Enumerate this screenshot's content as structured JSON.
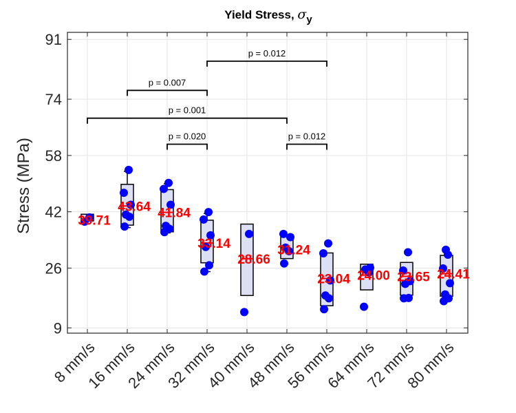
{
  "chart_data": {
    "type": "box",
    "title": "Yield Stress, ",
    "title_symbol": "σ",
    "title_subscript": "y",
    "ylabel": "Stress (MPa)",
    "ylim": [
      7.5,
      93
    ],
    "yticks": [
      9,
      26,
      42,
      58,
      74,
      91
    ],
    "grid": true,
    "colors": {
      "points": "#0000ff",
      "median": "#ff0000",
      "box_fill": "#dde0f5",
      "box_edge": "#000000",
      "labels": "#ff0000"
    },
    "categories": [
      "8 mm/s",
      "16 mm/s",
      "24 mm/s",
      "32 mm/s",
      "40 mm/s",
      "48 mm/s",
      "56 mm/s",
      "64 mm/s",
      "72 mm/s",
      "80 mm/s"
    ],
    "medians": [
      39.71,
      43.64,
      41.84,
      33.14,
      28.66,
      31.24,
      23.04,
      24.0,
      23.65,
      24.41
    ],
    "median_labels": [
      "39.71",
      "43.64",
      "41.84",
      "33.14",
      "28.66",
      "31.24",
      "23.04",
      "24.00",
      "23.65",
      "24.41"
    ],
    "boxes": [
      {
        "q1": 39.4,
        "q3": 41.3,
        "whisker_low": 39.4,
        "whisker_high": 41.3
      },
      {
        "q1": 38.2,
        "q3": 49.8,
        "whisker_low": 37.5,
        "whisker_high": 53.5
      },
      {
        "q1": 36.3,
        "q3": 48.3,
        "whisker_low": 36.0,
        "whisker_high": 50.0
      },
      {
        "q1": 27.5,
        "q3": 39.6,
        "whisker_low": 25.0,
        "whisker_high": 41.5
      },
      {
        "q1": 18.2,
        "q3": 38.5,
        "whisker_low": 18.2,
        "whisker_high": 38.5
      },
      {
        "q1": 28.7,
        "q3": 35.5,
        "whisker_low": 28.7,
        "whisker_high": 35.5
      },
      {
        "q1": 15.3,
        "q3": 30.3,
        "whisker_low": 15.3,
        "whisker_high": 30.3
      },
      {
        "q1": 19.8,
        "q3": 27.1,
        "whisker_low": 19.8,
        "whisker_high": 27.1
      },
      {
        "q1": 18.3,
        "q3": 27.6,
        "whisker_low": 18.3,
        "whisker_high": 27.6
      },
      {
        "q1": 18.0,
        "q3": 29.6,
        "whisker_low": 18.0,
        "whisker_high": 29.6
      }
    ],
    "points": [
      [
        39.2,
        40.4
      ],
      [
        37.8,
        40.6,
        41.2,
        44.0,
        47.4,
        53.9
      ],
      [
        36.2,
        37.2,
        38.0,
        44.0,
        48.5,
        50.2
      ],
      [
        25.0,
        26.8,
        32.0,
        35.3,
        39.8,
        41.9
      ],
      [
        13.5,
        35.7
      ],
      [
        27.3,
        30.8,
        31.8,
        34.8,
        35.7
      ],
      [
        14.3,
        17.4,
        18.2,
        22.5,
        30.2,
        33.0
      ],
      [
        15.0,
        24.8,
        25.6,
        26.1
      ],
      [
        17.4,
        17.5,
        21.5,
        22.3,
        25.3,
        30.5
      ],
      [
        16.6,
        17.4,
        18.5,
        21.7,
        25.9,
        29.8,
        31.2
      ]
    ],
    "significance": [
      {
        "from": 1,
        "to": 3,
        "level": 76.5,
        "label": "p = 0.007"
      },
      {
        "from": 3,
        "to": 6,
        "level": 84.8,
        "label": "p = 0.012"
      },
      {
        "from": 0,
        "to": 5,
        "level": 68.6,
        "label": "p = 0.001"
      },
      {
        "from": 2,
        "to": 3,
        "level": 61.2,
        "label": "p = 0.020"
      },
      {
        "from": 5,
        "to": 6,
        "level": 61.2,
        "label": "p = 0.012"
      }
    ]
  }
}
